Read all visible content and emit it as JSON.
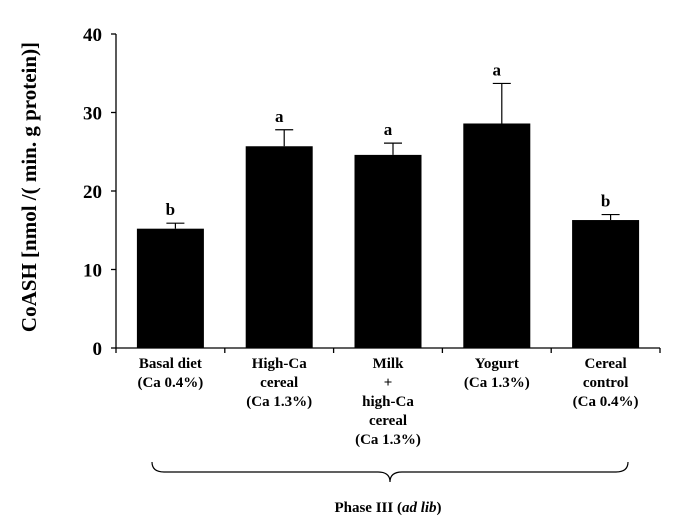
{
  "chart_data": {
    "type": "bar",
    "ylabel": "CoASH [nmol /( min. g protein)]",
    "xlabel": "",
    "ylim": [
      0,
      40
    ],
    "yticks": [
      "0",
      "10",
      "20",
      "30",
      "40"
    ],
    "grid": false,
    "categories": [
      [
        "Basal diet",
        "(Ca 0.4%)"
      ],
      [
        "High-Ca",
        "cereal",
        "(Ca 1.3%)"
      ],
      [
        "Milk",
        "+",
        "high-Ca",
        "cereal",
        "(Ca 1.3%)"
      ],
      [
        "Yogurt",
        "(Ca 1.3%)"
      ],
      [
        "Cereal",
        "control",
        "(Ca 0.4%)"
      ]
    ],
    "values": [
      15.2,
      25.7,
      24.6,
      28.6,
      16.3
    ],
    "errors": [
      0.7,
      2.1,
      1.5,
      5.1,
      0.7
    ],
    "significance": [
      "b",
      "a",
      "a",
      "a",
      "b"
    ],
    "bar_color": "#000000",
    "group_label": {
      "prefix": "Phase III (",
      "italic": "ad lib",
      "suffix": ")"
    }
  }
}
